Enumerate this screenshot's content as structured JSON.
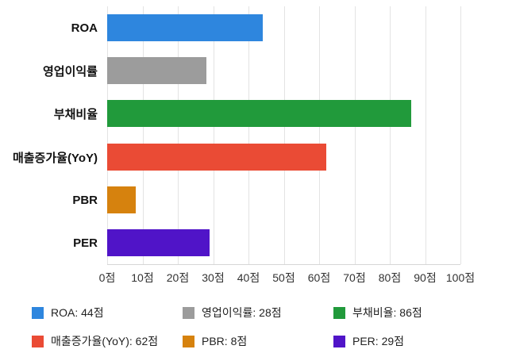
{
  "chart_data": {
    "type": "bar",
    "orientation": "horizontal",
    "categories": [
      "ROA",
      "영업이익률",
      "부채비율",
      "매출증가율(YoY)",
      "PBR",
      "PER"
    ],
    "values": [
      44,
      28,
      86,
      62,
      8,
      29
    ],
    "colors": [
      "#2e86de",
      "#9c9c9c",
      "#219a3b",
      "#ea4b35",
      "#d6820e",
      "#5014c8"
    ],
    "title": "",
    "xlabel": "",
    "ylabel": "",
    "xlim": [
      0,
      100
    ],
    "xticks": [
      0,
      10,
      20,
      30,
      40,
      50,
      60,
      70,
      80,
      90,
      100
    ],
    "tick_suffix": "점",
    "grid": true,
    "legend_position": "bottom",
    "legend": [
      {
        "label": "ROA: 44점",
        "color": "#2e86de"
      },
      {
        "label": "영업이익률: 28점",
        "color": "#9c9c9c"
      },
      {
        "label": "부채비율: 86점",
        "color": "#219a3b"
      },
      {
        "label": "매출증가율(YoY): 62점",
        "color": "#ea4b35"
      },
      {
        "label": "PBR: 8점",
        "color": "#d6820e"
      },
      {
        "label": "PER: 29점",
        "color": "#5014c8"
      }
    ]
  }
}
